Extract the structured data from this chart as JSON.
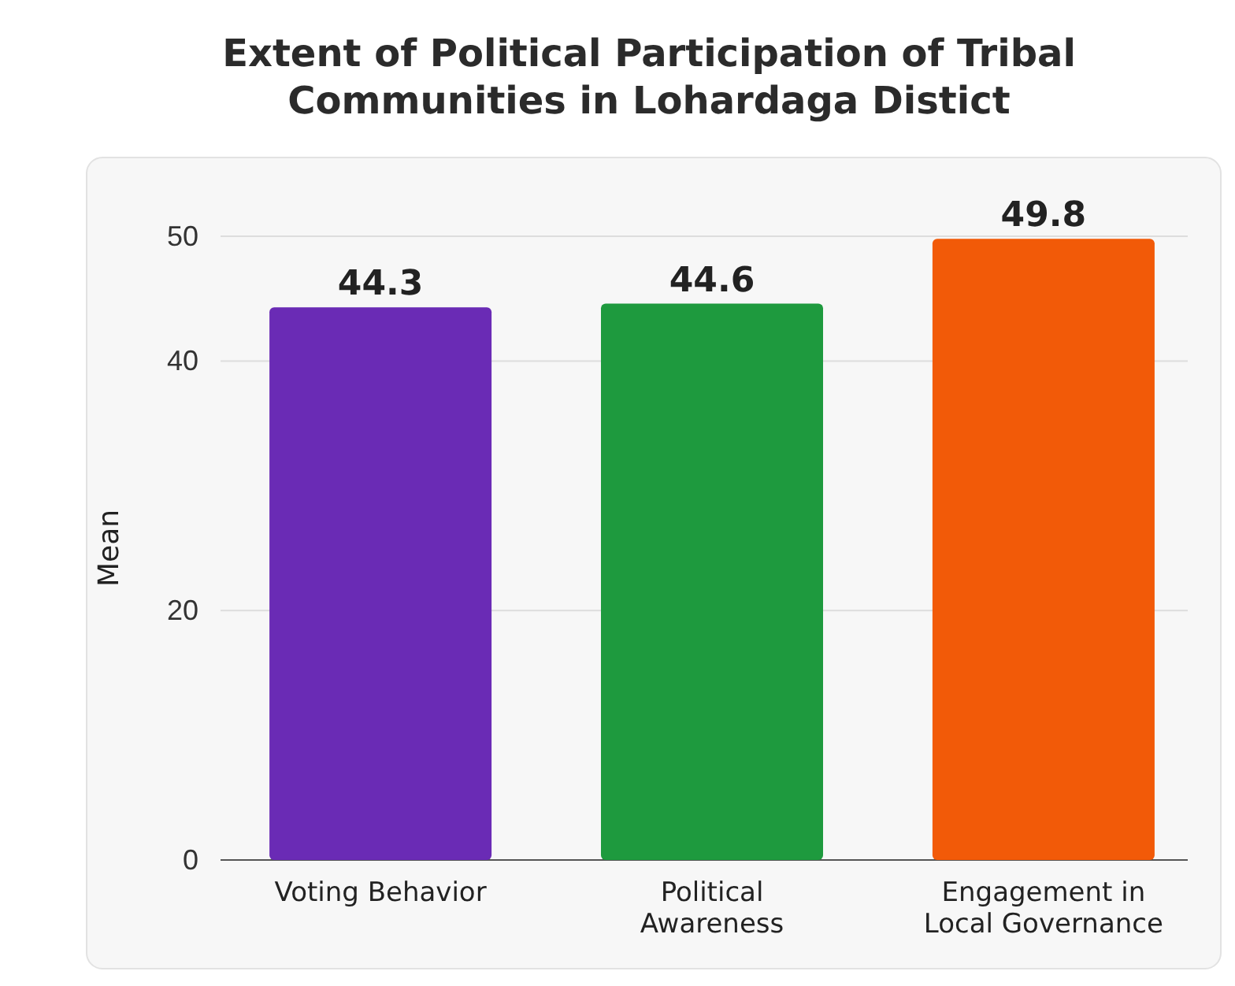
{
  "chart_data": {
    "type": "bar",
    "title": "Extent of Political Participation of Tribal Communities in Lohardaga Distict",
    "categories": [
      "Voting Behavior",
      "Political Awareness",
      "Engagement in Local Governance"
    ],
    "values": [
      44.3,
      44.6,
      49.8
    ],
    "colors": [
      "#6a2bb5",
      "#1e9a3e",
      "#f25a08"
    ],
    "ylabel": "Mean",
    "ylim": [
      0,
      50
    ],
    "yticks": [
      0,
      20,
      40,
      50
    ],
    "grid": "y",
    "data_labels": true
  }
}
